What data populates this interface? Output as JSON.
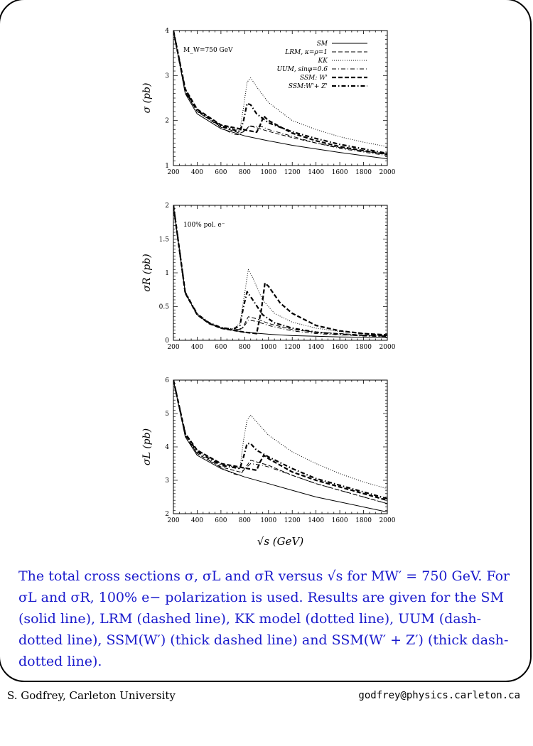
{
  "slide": {
    "caption": "The total cross sections σ, σL and σR versus √s for MW′ = 750 GeV. For σL and σR, 100% e− polarization is used. Results are given for the SM (solid line), LRM (dashed line), KK model (dotted line), UUM (dash-dotted line), SSM(W′) (thick dashed line) and SSM(W′ + Z′) (thick dash-dotted line).",
    "footer_left": "S. Godfrey, Carleton University",
    "footer_right": "godfrey@physics.carleton.ca",
    "x_axis_label": "√s (GeV)",
    "caption_color": "#1a1acc"
  },
  "chart_data": [
    {
      "type": "line",
      "ylabel": "σ (pb)",
      "annotation": "M_W=750 GeV",
      "xlim": [
        200,
        2000
      ],
      "ylim": [
        1,
        4
      ],
      "xticks": [
        "200",
        "400",
        "600",
        "800",
        "1000",
        "1200",
        "1400",
        "1600",
        "1800",
        "2000"
      ],
      "yticks": [
        "1",
        "2",
        "3",
        "4"
      ],
      "legend_position": "top-right",
      "series": [
        {
          "name": "SM",
          "style": "solid",
          "x": [
            200,
            300,
            400,
            600,
            800,
            1000,
            1200,
            1400,
            1600,
            1800,
            2000
          ],
          "y": [
            4.0,
            2.6,
            2.15,
            1.82,
            1.66,
            1.55,
            1.45,
            1.37,
            1.29,
            1.22,
            1.15
          ]
        },
        {
          "name": "LRM, κ=ρ=1",
          "style": "dashed",
          "x": [
            200,
            300,
            400,
            600,
            760,
            790,
            840,
            900,
            1000,
            1200,
            1400,
            1600,
            1800,
            2000
          ],
          "y": [
            4.0,
            2.65,
            2.2,
            1.86,
            1.72,
            1.75,
            1.88,
            1.84,
            1.76,
            1.62,
            1.5,
            1.4,
            1.32,
            1.25
          ]
        },
        {
          "name": "KK",
          "style": "dotted",
          "x": [
            200,
            300,
            400,
            600,
            760,
            790,
            820,
            850,
            900,
            1000,
            1200,
            1400,
            1600,
            1800,
            2000
          ],
          "y": [
            4.0,
            2.7,
            2.25,
            1.9,
            1.78,
            2.3,
            2.85,
            2.95,
            2.75,
            2.4,
            2.0,
            1.8,
            1.64,
            1.52,
            1.42
          ]
        },
        {
          "name": "UUM, sinφ=0.6",
          "style": "dashdot",
          "x": [
            200,
            300,
            400,
            600,
            700,
            760,
            790,
            850,
            950,
            1000,
            1200,
            1400,
            1600,
            1800,
            2000
          ],
          "y": [
            4.0,
            2.62,
            2.2,
            1.85,
            1.7,
            1.68,
            1.76,
            1.88,
            1.86,
            1.8,
            1.65,
            1.5,
            1.38,
            1.3,
            1.22
          ]
        },
        {
          "name": "SSM: W'",
          "style": "thickdashed",
          "x": [
            200,
            300,
            400,
            600,
            900,
            930,
            960,
            1000,
            1200,
            1400,
            1600,
            1800,
            2000
          ],
          "y": [
            4.0,
            2.7,
            2.25,
            1.9,
            1.74,
            1.9,
            2.1,
            2.0,
            1.72,
            1.55,
            1.42,
            1.33,
            1.25
          ]
        },
        {
          "name": "SSM:W'+ Z'",
          "style": "thickdashdot",
          "x": [
            200,
            300,
            400,
            600,
            760,
            790,
            820,
            850,
            900,
            1000,
            1200,
            1400,
            1600,
            1800,
            2000
          ],
          "y": [
            4.0,
            2.66,
            2.22,
            1.88,
            1.75,
            2.0,
            2.38,
            2.35,
            2.15,
            1.95,
            1.75,
            1.6,
            1.47,
            1.37,
            1.27
          ]
        }
      ]
    },
    {
      "type": "line",
      "ylabel": "σR (pb)",
      "annotation": "100% pol. e⁻",
      "xlim": [
        200,
        2000
      ],
      "ylim": [
        0,
        2
      ],
      "xticks": [
        "200",
        "400",
        "600",
        "800",
        "1000",
        "1200",
        "1400",
        "1600",
        "1800",
        "2000"
      ],
      "yticks": [
        "0",
        "0.5",
        "1",
        "1.5",
        "2"
      ],
      "series": [
        {
          "name": "SM",
          "style": "solid",
          "x": [
            200,
            300,
            400,
            500,
            600,
            800,
            1000,
            1200,
            1400,
            1600,
            1800,
            2000
          ],
          "y": [
            2.0,
            0.7,
            0.38,
            0.25,
            0.18,
            0.12,
            0.09,
            0.07,
            0.06,
            0.05,
            0.045,
            0.04
          ]
        },
        {
          "name": "LRM, κ=ρ=1",
          "style": "dashed",
          "x": [
            200,
            300,
            400,
            500,
            600,
            700,
            780,
            830,
            900,
            1000,
            1200,
            1400,
            1600,
            1800,
            2000
          ],
          "y": [
            2.0,
            0.7,
            0.38,
            0.25,
            0.18,
            0.15,
            0.18,
            0.35,
            0.32,
            0.25,
            0.16,
            0.12,
            0.1,
            0.08,
            0.07
          ]
        },
        {
          "name": "KK",
          "style": "dotted",
          "x": [
            200,
            300,
            400,
            500,
            600,
            700,
            760,
            800,
            830,
            870,
            950,
            1050,
            1200,
            1400,
            1600,
            1800,
            2000
          ],
          "y": [
            2.0,
            0.72,
            0.4,
            0.26,
            0.19,
            0.17,
            0.25,
            0.7,
            1.05,
            0.92,
            0.6,
            0.4,
            0.27,
            0.18,
            0.13,
            0.1,
            0.08
          ]
        },
        {
          "name": "UUM, sinφ=0.6",
          "style": "dashdot",
          "x": [
            200,
            300,
            400,
            500,
            600,
            700,
            780,
            830,
            900,
            1000,
            1200,
            1400,
            1600,
            1800,
            2000
          ],
          "y": [
            2.0,
            0.7,
            0.38,
            0.25,
            0.18,
            0.15,
            0.17,
            0.3,
            0.28,
            0.22,
            0.14,
            0.1,
            0.08,
            0.07,
            0.06
          ]
        },
        {
          "name": "SSM: W'",
          "style": "thickdashed",
          "x": [
            200,
            300,
            400,
            500,
            600,
            800,
            900,
            940,
            970,
            1000,
            1100,
            1200,
            1400,
            1600,
            1800,
            2000
          ],
          "y": [
            2.0,
            0.7,
            0.38,
            0.25,
            0.18,
            0.12,
            0.1,
            0.45,
            0.85,
            0.8,
            0.55,
            0.4,
            0.22,
            0.14,
            0.1,
            0.08
          ]
        },
        {
          "name": "SSM:W'+ Z'",
          "style": "thickdashdot",
          "x": [
            200,
            300,
            400,
            500,
            600,
            700,
            760,
            790,
            820,
            860,
            950,
            1050,
            1200,
            1400,
            1600,
            1800,
            2000
          ],
          "y": [
            2.0,
            0.71,
            0.39,
            0.26,
            0.19,
            0.16,
            0.22,
            0.5,
            0.72,
            0.62,
            0.38,
            0.26,
            0.18,
            0.12,
            0.09,
            0.07,
            0.06
          ]
        }
      ]
    },
    {
      "type": "line",
      "ylabel": "σL (pb)",
      "xlabel": "√s (GeV)",
      "xlim": [
        200,
        2000
      ],
      "ylim": [
        2,
        6
      ],
      "xticks": [
        "200",
        "400",
        "600",
        "800",
        "1000",
        "1200",
        "1400",
        "1600",
        "1800",
        "2000"
      ],
      "yticks": [
        "2",
        "3",
        "4",
        "5",
        "6"
      ],
      "series": [
        {
          "name": "SM",
          "style": "solid",
          "x": [
            200,
            300,
            400,
            600,
            800,
            1000,
            1200,
            1400,
            1600,
            1800,
            2000
          ],
          "y": [
            6.0,
            4.3,
            3.75,
            3.35,
            3.1,
            2.9,
            2.7,
            2.5,
            2.35,
            2.2,
            2.05
          ]
        },
        {
          "name": "LRM, κ=ρ=1",
          "style": "dashed",
          "x": [
            200,
            300,
            400,
            600,
            760,
            790,
            850,
            900,
            1000,
            1200,
            1400,
            1600,
            1800,
            2000
          ],
          "y": [
            6.0,
            4.35,
            3.8,
            3.4,
            3.25,
            3.3,
            3.6,
            3.55,
            3.45,
            3.15,
            2.9,
            2.7,
            2.5,
            2.3
          ]
        },
        {
          "name": "KK",
          "style": "dotted",
          "x": [
            200,
            300,
            400,
            600,
            760,
            790,
            820,
            850,
            900,
            1000,
            1200,
            1400,
            1600,
            1800,
            2000
          ],
          "y": [
            6.0,
            4.4,
            3.9,
            3.5,
            3.35,
            4.2,
            4.8,
            4.95,
            4.75,
            4.35,
            3.85,
            3.5,
            3.2,
            2.95,
            2.75
          ]
        },
        {
          "name": "UUM, sinφ=0.6",
          "style": "dashdot",
          "x": [
            200,
            300,
            400,
            600,
            700,
            760,
            790,
            850,
            950,
            1000,
            1200,
            1400,
            1600,
            1800,
            2000
          ],
          "y": [
            6.0,
            4.32,
            3.8,
            3.38,
            3.2,
            3.15,
            3.3,
            3.5,
            3.45,
            3.4,
            3.15,
            2.9,
            2.7,
            2.5,
            2.3
          ]
        },
        {
          "name": "SSM: W'",
          "style": "thickdashed",
          "x": [
            200,
            300,
            400,
            600,
            900,
            930,
            960,
            1000,
            1200,
            1400,
            1600,
            1800,
            2000
          ],
          "y": [
            6.0,
            4.4,
            3.9,
            3.5,
            3.3,
            3.55,
            3.75,
            3.65,
            3.25,
            3.0,
            2.8,
            2.6,
            2.4
          ]
        },
        {
          "name": "SSM:W'+ Z'",
          "style": "thickdashdot",
          "x": [
            200,
            300,
            400,
            600,
            760,
            790,
            820,
            850,
            900,
            1000,
            1200,
            1400,
            1600,
            1800,
            2000
          ],
          "y": [
            6.0,
            4.38,
            3.85,
            3.45,
            3.35,
            3.7,
            4.1,
            4.1,
            3.9,
            3.7,
            3.35,
            3.05,
            2.85,
            2.65,
            2.45
          ]
        }
      ]
    }
  ]
}
